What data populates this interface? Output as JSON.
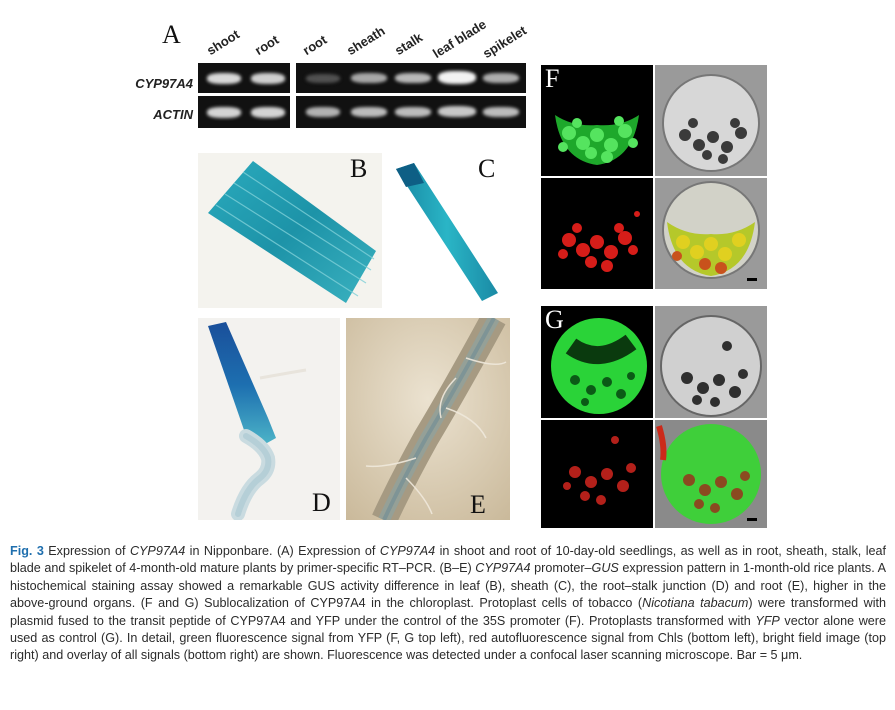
{
  "panel_A": {
    "letter": "A",
    "lanes_left": [
      "shoot",
      "root"
    ],
    "lanes_right": [
      "root",
      "sheath",
      "stalk",
      "leaf blade",
      "spikelet"
    ],
    "rows": [
      {
        "gene": "CYP97A4",
        "left_intensity": [
          0.85,
          0.8
        ],
        "right_intensity": [
          0.25,
          0.6,
          0.7,
          1.0,
          0.65
        ]
      },
      {
        "gene": "ACTIN",
        "left_intensity": [
          0.85,
          0.85
        ],
        "right_intensity": [
          0.75,
          0.8,
          0.8,
          0.85,
          0.8
        ]
      }
    ]
  },
  "panels": {
    "B": "B",
    "C": "C",
    "D": "D",
    "E": "E",
    "F": "F",
    "G": "G"
  },
  "caption": {
    "fig_label": "Fig. 3",
    "segments": [
      {
        "t": " Expression of ",
        "i": false
      },
      {
        "t": "CYP97A4",
        "i": true
      },
      {
        "t": " in Nipponbare. (A) Expression of ",
        "i": false
      },
      {
        "t": "CYP97A4",
        "i": true
      },
      {
        "t": " in shoot and root of 10-day-old seedlings, as well as in root, sheath, stalk, leaf blade and spikelet of 4-month-old mature plants by primer-specific RT–PCR. (B–E) ",
        "i": false
      },
      {
        "t": "CYP97A4",
        "i": true
      },
      {
        "t": " promoter–",
        "i": false
      },
      {
        "t": "GUS",
        "i": true
      },
      {
        "t": " expression pattern in 1-month-old rice plants. A histochemical staining assay showed a remarkable GUS activity difference in leaf (B), sheath (C), the root–stalk junction (D) and root (E), higher in the above-ground organs. (F and G) Sublocalization of CYP97A4 in the chloroplast. Protoplast cells of tobacco (",
        "i": false
      },
      {
        "t": "Nicotiana tabacum",
        "i": true
      },
      {
        "t": ") were transformed with plasmid fused to the transit peptide of CYP97A4 and YFP under the control of the 35S promoter (F). Protoplasts transformed with ",
        "i": false
      },
      {
        "t": "YFP",
        "i": true
      },
      {
        "t": " vector alone were used as control (G). In detail, green fluorescence signal from YFP (F, G top left), red autofluorescence signal from Chls (bottom left), bright field image (top right) and overlay of all signals (bottom right) are shown. Fluorescence was detected under a confocal laser scanning microscope. Bar = 5 μm.",
        "i": false
      }
    ]
  },
  "colors": {
    "gus_blue": "#1f9fb0",
    "yfp_green": "#2fd23a",
    "chl_red": "#e0201c",
    "caption_blue": "#1f6fae"
  }
}
